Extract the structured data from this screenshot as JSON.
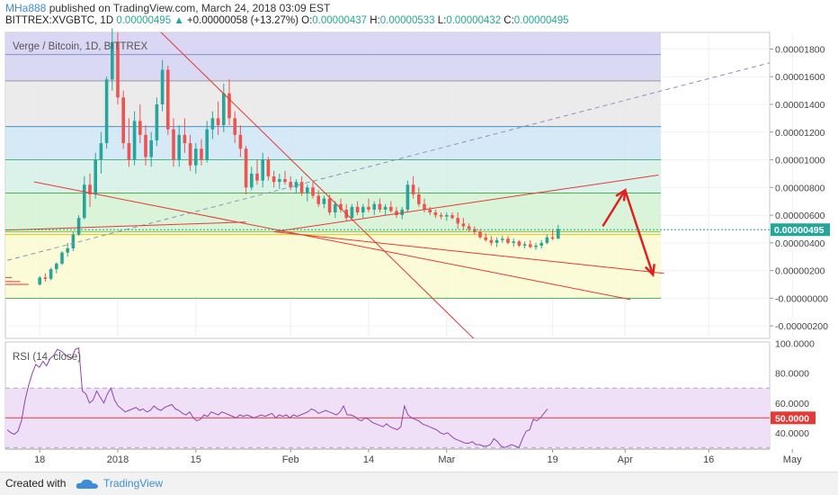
{
  "header": {
    "user": "MHa888",
    "published": "published on TradingView.com, March 24, 2018 03:09 EST",
    "symbol": "BITTREX:XVGBTC, 1D",
    "last": "0.00000495",
    "change_arrow": "▲",
    "change": "+0.00000058 (+13.27%)",
    "o_label": "O:",
    "o": "0.00000437",
    "h_label": "H:",
    "h": "0.00000533",
    "l_label": "L:",
    "l": "0.00000432",
    "c_label": "C:",
    "c": "0.00000495"
  },
  "footer": {
    "created": "Created with",
    "brand": "TradingView"
  },
  "colors": {
    "up": "#26a69a",
    "down": "#ef5350",
    "trend": "#e53935",
    "rsi_line": "#8e44ad",
    "arrow": "#e02020"
  },
  "chart_data": [
    {
      "type": "candlestick",
      "title": "Verge / Bitcoin, 1D, BITTREX",
      "y_ticks": [
        "0.00001800",
        "0.00001600",
        "0.00001400",
        "0.00001200",
        "0.00001000",
        "0.00000800",
        "0.00000600",
        "0.00000400",
        "0.00000200",
        "-0.00000000",
        "-0.00000200"
      ],
      "y_tick_values": [
        1.8e-05,
        1.6e-05,
        1.4e-05,
        1.2e-05,
        1e-05,
        8e-06,
        6e-06,
        4e-06,
        2e-06,
        0,
        -2e-06
      ],
      "ylim": [
        -2.9e-06,
        1.92e-05
      ],
      "last_price_label": "0.00000495",
      "last_price": 4.95e-06,
      "x_ticks": [
        "18",
        "2018",
        "15",
        "Feb",
        "14",
        "Mar",
        "19",
        "Apr",
        "16",
        "May"
      ],
      "x_tick_values": [
        -14,
        0,
        14,
        31,
        45,
        59,
        78,
        91,
        106,
        121
      ],
      "fib_levels": [
        1.76e-05,
        1.57e-05,
        1.24e-05,
        1e-05,
        7.6e-06,
        4.8e-06,
        4.6e-06,
        0
      ],
      "trendlines": [
        {
          "x1": -24,
          "y1": 2.3e-06,
          "x2": 138,
          "y2": 1.92e-05,
          "style": "dashed"
        },
        {
          "x1": -29,
          "y1": 4.8e-06,
          "x2": 23,
          "y2": 5.5e-06
        },
        {
          "x1": -15,
          "y1": 8.4e-06,
          "x2": 92,
          "y2": -1e-07
        },
        {
          "x1": 7,
          "y1": 1.95e-05,
          "x2": 77,
          "y2": -8.1e-06
        },
        {
          "x1": 28,
          "y1": 4.8e-06,
          "x2": 97,
          "y2": 8.9e-06
        },
        {
          "x1": 28,
          "y1": 4.8e-06,
          "x2": 98,
          "y2": 1.8e-06
        }
      ],
      "projection_arrows": [
        {
          "x1": 87,
          "y1": 5.2e-06,
          "x2": 91,
          "y2": 7.8e-06
        },
        {
          "x1": 91,
          "y1": 7.8e-06,
          "x2": 96,
          "y2": 1.7e-06
        }
      ],
      "candles": [
        [
          1e-06,
          1.6e-06,
          9e-07,
          1.5e-06
        ],
        [
          1.5e-06,
          1.8e-06,
          1.2e-06,
          1.4e-06
        ],
        [
          1.4e-06,
          2.2e-06,
          1.3e-06,
          2.1e-06
        ],
        [
          2.1e-06,
          2.6e-06,
          1.8e-06,
          2.5e-06
        ],
        [
          2.5e-06,
          3.4e-06,
          2.4e-06,
          3.3e-06
        ],
        [
          3.3e-06,
          4e-06,
          3e-06,
          3.6e-06
        ],
        [
          3.6e-06,
          4.8e-06,
          3.4e-06,
          4.6e-06
        ],
        [
          4.6e-06,
          6e-06,
          4.5e-06,
          5.8e-06
        ],
        [
          5.8e-06,
          8.8e-06,
          5.7e-06,
          8.2e-06
        ],
        [
          8.2e-06,
          9e-06,
          6.6e-06,
          7.5e-06
        ],
        [
          7.5e-06,
          1.05e-05,
          7.2e-06,
          1e-05
        ],
        [
          1e-05,
          1.2e-05,
          9e-06,
          1.12e-05
        ],
        [
          1.12e-05,
          1.6e-05,
          1.08e-05,
          1.58e-05
        ],
        [
          1.58e-05,
          1.95e-05,
          1.5e-05,
          1.85e-05
        ],
        [
          1.85e-05,
          1.92e-05,
          1.4e-05,
          1.45e-05
        ],
        [
          1.45e-05,
          1.5e-05,
          1.08e-05,
          1.12e-05
        ],
        [
          1.12e-05,
          1.3e-05,
          9.5e-06,
          1e-05
        ],
        [
          1e-05,
          1.35e-05,
          9.6e-06,
          1.28e-05
        ],
        [
          1.28e-05,
          1.4e-05,
          1.12e-05,
          1.18e-05
        ],
        [
          1.18e-05,
          1.25e-05,
          9.6e-06,
          1.02e-05
        ],
        [
          1.02e-05,
          1.2e-05,
          9.5e-06,
          1.14e-05
        ],
        [
          1.14e-05,
          1.45e-05,
          1.1e-05,
          1.4e-05
        ],
        [
          1.4e-05,
          1.72e-05,
          1.35e-05,
          1.65e-05
        ],
        [
          1.65e-05,
          1.68e-05,
          1.18e-05,
          1.22e-05
        ],
        [
          1.22e-05,
          1.3e-05,
          9.5e-06,
          1e-05
        ],
        [
          1e-05,
          1.25e-05,
          9.5e-06,
          1.18e-05
        ],
        [
          1.18e-05,
          1.3e-05,
          1.05e-05,
          1.12e-05
        ],
        [
          1.12e-05,
          1.18e-05,
          9.2e-06,
          9.6e-06
        ],
        [
          9.6e-06,
          1.12e-05,
          9e-06,
          1.08e-05
        ],
        [
          1.08e-05,
          1.15e-05,
          9.6e-06,
          1e-05
        ],
        [
          1e-05,
          1.28e-05,
          9.8e-06,
          1.22e-05
        ],
        [
          1.22e-05,
          1.35e-05,
          1.15e-05,
          1.3e-05
        ],
        [
          1.3e-05,
          1.42e-05,
          1.18e-05,
          1.25e-05
        ],
        [
          1.25e-05,
          1.55e-05,
          1.2e-05,
          1.48e-05
        ],
        [
          1.48e-05,
          1.58e-05,
          1.25e-05,
          1.3e-05
        ],
        [
          1.3e-05,
          1.35e-05,
          1.12e-05,
          1.18e-05
        ],
        [
          1.18e-05,
          1.25e-05,
          1.02e-05,
          1.08e-05
        ],
        [
          1.08e-05,
          1.1e-05,
          7.5e-06,
          8e-06
        ],
        [
          8e-06,
          9.5e-06,
          7.8e-06,
          9e-06
        ],
        [
          9e-06,
          1e-05,
          8.2e-06,
          8.5e-06
        ],
        [
          8.5e-06,
          1.05e-05,
          8e-06,
          1e-05
        ],
        [
          1e-05,
          1.02e-05,
          8.5e-06,
          8.8e-06
        ],
        [
          8.8e-06,
          9.2e-06,
          8e-06,
          8.4e-06
        ],
        [
          8.4e-06,
          9e-06,
          7.9e-06,
          8.6e-06
        ],
        [
          8.6e-06,
          9.2e-06,
          8.2e-06,
          8.4e-06
        ],
        [
          8.4e-06,
          8.8e-06,
          7.8e-06,
          8e-06
        ],
        [
          8e-06,
          8.6e-06,
          7.6e-06,
          8.4e-06
        ],
        [
          8.4e-06,
          8.8e-06,
          7.4e-06,
          7.6e-06
        ],
        [
          7.6e-06,
          8.2e-06,
          7e-06,
          8e-06
        ],
        [
          8e-06,
          8.4e-06,
          7.2e-06,
          7.4e-06
        ],
        [
          7.4e-06,
          7.8e-06,
          6.6e-06,
          6.8e-06
        ],
        [
          6.8e-06,
          7.4e-06,
          6.5e-06,
          7.2e-06
        ],
        [
          7.2e-06,
          7.5e-06,
          6e-06,
          6.2e-06
        ],
        [
          6.2e-06,
          7e-06,
          5.8e-06,
          6.8e-06
        ],
        [
          6.8e-06,
          7.2e-06,
          6.2e-06,
          6.4e-06
        ],
        [
          6.4e-06,
          6.8e-06,
          5.6e-06,
          5.8e-06
        ],
        [
          5.8e-06,
          6.8e-06,
          5.6e-06,
          6.6e-06
        ],
        [
          6.6e-06,
          7e-06,
          6e-06,
          6.2e-06
        ],
        [
          6.2e-06,
          6.8e-06,
          5.8e-06,
          6.6e-06
        ],
        [
          6.6e-06,
          7.2e-06,
          6.2e-06,
          6.4e-06
        ],
        [
          6.4e-06,
          7e-06,
          6e-06,
          6.8e-06
        ],
        [
          6.8e-06,
          7.2e-06,
          6.2e-06,
          6.4e-06
        ],
        [
          6.4e-06,
          6.8e-06,
          6e-06,
          6.6e-06
        ],
        [
          6.6e-06,
          7e-06,
          6.2e-06,
          6.3e-06
        ],
        [
          6.3e-06,
          6.6e-06,
          5.8e-06,
          6e-06
        ],
        [
          6e-06,
          6.6e-06,
          5.7e-06,
          6.4e-06
        ],
        [
          6.4e-06,
          8.5e-06,
          6.2e-06,
          8.2e-06
        ],
        [
          8.2e-06,
          8.8e-06,
          7.2e-06,
          7.5e-06
        ],
        [
          7.5e-06,
          8e-06,
          6.6e-06,
          6.8e-06
        ],
        [
          6.8e-06,
          7.2e-06,
          6.2e-06,
          6.4e-06
        ],
        [
          6.4e-06,
          6.6e-06,
          6e-06,
          6.2e-06
        ],
        [
          6.2e-06,
          6.4e-06,
          5.8e-06,
          6e-06
        ],
        [
          6e-06,
          6.2e-06,
          5.7e-06,
          5.9e-06
        ],
        [
          5.9e-06,
          6.2e-06,
          5.6e-06,
          6e-06
        ],
        [
          6e-06,
          6.2e-06,
          5.7e-06,
          5.8e-06
        ],
        [
          5.8e-06,
          6.2e-06,
          5e-06,
          5.4e-06
        ],
        [
          5.4e-06,
          5.8e-06,
          5e-06,
          5.2e-06
        ],
        [
          5.2e-06,
          5.4e-06,
          4.8e-06,
          5e-06
        ],
        [
          5e-06,
          5.2e-06,
          4.6e-06,
          4.8e-06
        ],
        [
          4.8e-06,
          5e-06,
          4.3e-06,
          4.4e-06
        ],
        [
          4.4e-06,
          4.7e-06,
          4.1e-06,
          4.2e-06
        ],
        [
          4.2e-06,
          4.5e-06,
          3.8e-06,
          4e-06
        ],
        [
          4e-06,
          4.4e-06,
          3.7e-06,
          4.2e-06
        ],
        [
          4.2e-06,
          4.5e-06,
          4e-06,
          4.3e-06
        ],
        [
          4.3e-06,
          4.5e-06,
          3.9e-06,
          4e-06
        ],
        [
          4e-06,
          4.3e-06,
          3.7e-06,
          4.1e-06
        ],
        [
          4.1e-06,
          4.2e-06,
          3.7e-06,
          3.8e-06
        ],
        [
          3.8e-06,
          4.1e-06,
          3.6e-06,
          3.9e-06
        ],
        [
          3.9e-06,
          4.2e-06,
          3.6e-06,
          3.7e-06
        ],
        [
          3.7e-06,
          4e-06,
          3.5e-06,
          3.8e-06
        ],
        [
          3.8e-06,
          4.2e-06,
          3.6e-06,
          4e-06
        ],
        [
          4e-06,
          4.6e-06,
          3.9e-06,
          4.4e-06
        ],
        [
          4.4e-06,
          5e-06,
          4.2e-06,
          4.3e-06
        ],
        [
          4.3e-06,
          5.3e-06,
          4.3e-06,
          5e-06
        ]
      ],
      "candle_x_start": -14,
      "candle_x_step": 1
    },
    {
      "type": "line",
      "title": "RSI (14, close)",
      "y_ticks": [
        "100.0000",
        "80.0000",
        "60.0000",
        "40.0000"
      ],
      "y_tick_values": [
        100,
        80,
        60,
        40
      ],
      "ylim": [
        29,
        101
      ],
      "band": [
        30,
        70
      ],
      "level": 50,
      "level_label": "50.0000",
      "x_start": -25,
      "x_step": 1,
      "values": [
        42,
        40,
        39,
        41,
        48,
        62,
        72,
        80,
        86,
        84,
        88,
        85,
        90,
        92,
        96,
        95,
        93,
        91,
        90,
        96,
        97,
        68,
        66,
        60,
        62,
        68,
        64,
        60,
        66,
        70,
        62,
        58,
        56,
        54,
        55,
        56,
        57,
        55,
        56,
        54,
        55,
        58,
        56,
        55,
        57,
        58,
        59,
        56,
        55,
        53,
        52,
        54,
        50,
        48,
        49,
        52,
        51,
        54,
        53,
        52,
        54,
        53,
        52,
        51,
        50,
        52,
        51,
        52,
        51,
        50,
        51,
        52,
        51,
        52,
        53,
        50,
        52,
        51,
        52,
        50,
        52,
        51,
        52,
        53,
        54,
        56,
        55,
        53,
        54,
        55,
        54,
        53,
        52,
        54,
        58,
        52,
        52,
        51,
        49,
        48,
        50,
        49,
        47,
        46,
        45,
        44,
        46,
        44,
        43,
        42,
        44,
        58,
        52,
        50,
        49,
        48,
        46,
        45,
        44,
        43,
        42,
        40,
        39,
        40,
        38,
        36,
        35,
        34,
        33,
        33,
        34,
        32,
        32,
        31,
        31,
        32,
        36,
        34,
        31,
        30,
        31,
        32,
        31,
        30,
        36,
        41,
        42,
        49,
        48,
        50,
        53,
        56
      ]
    }
  ]
}
